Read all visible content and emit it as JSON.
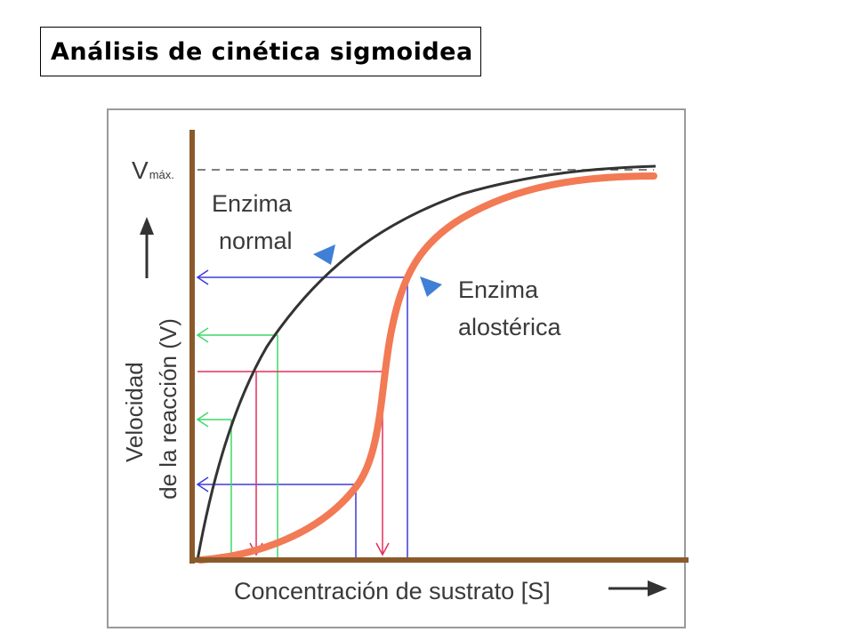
{
  "title": "Análisis de cinética sigmoidea",
  "diagram": {
    "vmax_label": "V",
    "vmax_sub": "máx.",
    "normal_label": [
      "Enzima",
      "normal"
    ],
    "allosteric_label": [
      "Enzima",
      "alostérica"
    ],
    "y_axis_label": [
      "Velocidad",
      "de la reacción (V)"
    ],
    "x_axis_label": "Concentración de sustrato [S]",
    "colors": {
      "normal_curve": "#333333",
      "allosteric_curve": "#f27a55",
      "axis": "#8b5a2b",
      "blue_guides": "#3b3bdc",
      "green_guides": "#3fd96a",
      "red_guides": "#e0305a"
    }
  }
}
